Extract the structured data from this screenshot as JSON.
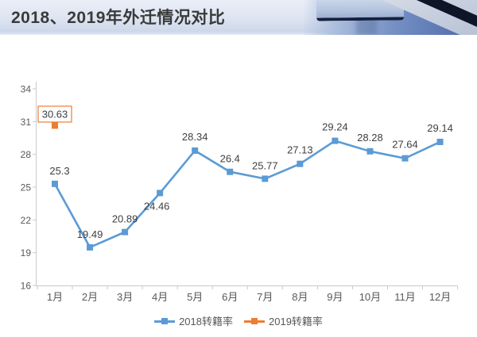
{
  "header": {
    "title": "2018、2019年外迁情况对比"
  },
  "chart_data": {
    "type": "line",
    "title": "2018、2019年外迁情况对比",
    "categories": [
      "1月",
      "2月",
      "3月",
      "4月",
      "5月",
      "6月",
      "7月",
      "8月",
      "9月",
      "10月",
      "11月",
      "12月"
    ],
    "series": [
      {
        "name": "2018转籍率",
        "color": "#5B9BD5",
        "marker": "square",
        "values": [
          25.3,
          19.49,
          20.89,
          24.46,
          28.34,
          26.4,
          25.77,
          27.13,
          29.24,
          28.28,
          27.64,
          29.14
        ],
        "label_dx": [
          6,
          0,
          0,
          -4,
          0,
          0,
          0,
          0,
          0,
          0,
          0,
          0
        ],
        "label_dy": [
          -12,
          -12,
          -12,
          21,
          -13,
          -12,
          -12,
          -13,
          -13,
          -13,
          -13,
          -13
        ]
      },
      {
        "name": "2019转籍率",
        "color": "#ED7D31",
        "marker": "square",
        "values": [
          30.63,
          null,
          null,
          null,
          null,
          null,
          null,
          null,
          null,
          null,
          null,
          null
        ],
        "boxed_labels": true
      }
    ],
    "ylim": [
      16,
      34
    ],
    "y_ticks": [
      16,
      19,
      22,
      25,
      28,
      31,
      34
    ],
    "grid": false,
    "legend_position": "bottom",
    "colors": {
      "axis_line": "#c9c9c9",
      "tick_label": "#595959",
      "data_label": "#404040",
      "label_box_fill": "#ffffff"
    }
  }
}
